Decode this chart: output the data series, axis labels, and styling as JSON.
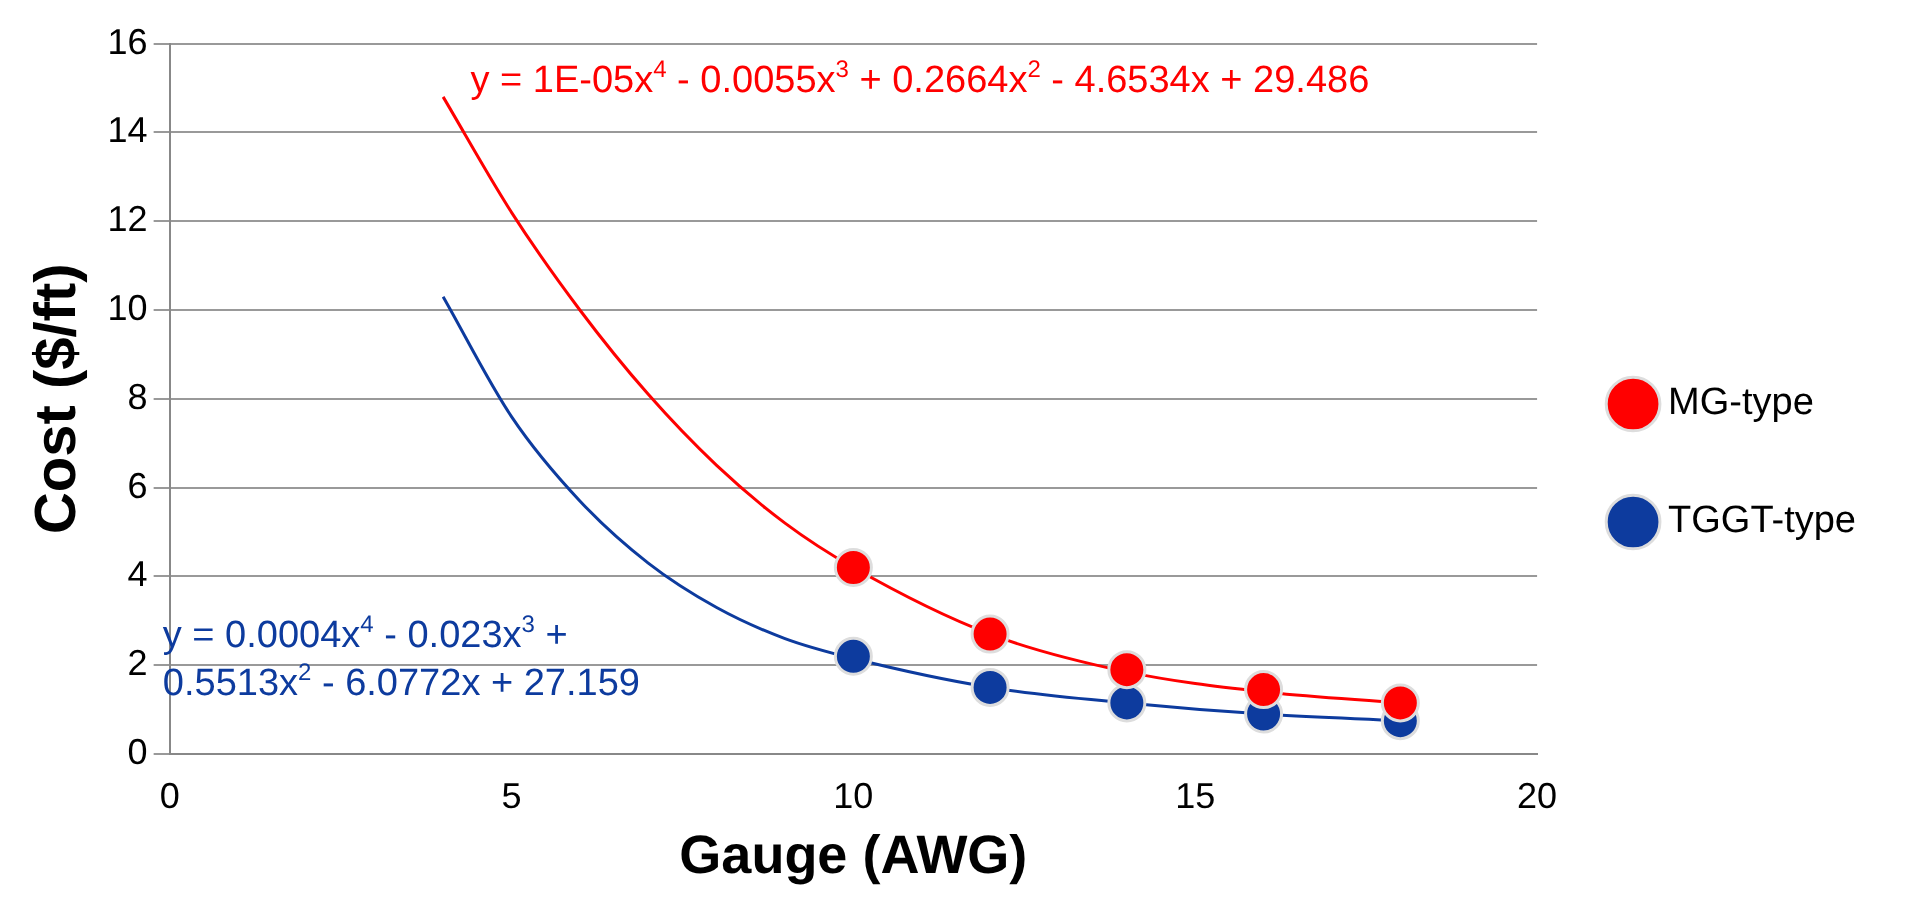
{
  "chart_data": {
    "type": "scatter",
    "xlabel": "Gauge (AWG)",
    "ylabel": "Cost ($/ft)",
    "xlim": [
      0,
      20
    ],
    "xticks": [
      0,
      5,
      10,
      15,
      20
    ],
    "ylim": [
      0,
      16
    ],
    "yticks": [
      0,
      2,
      4,
      6,
      8,
      10,
      12,
      14,
      16
    ],
    "grid": "y",
    "legend": "right",
    "series": [
      {
        "name": "MG-type",
        "marker": "circle",
        "color": "#ff0000",
        "x": [
          10,
          12,
          14,
          16,
          18
        ],
        "values": [
          4.2,
          2.7,
          1.9,
          1.45,
          1.15
        ]
      },
      {
        "name": "TGGT-type",
        "marker": "circle",
        "color": "#0d3b9e",
        "x": [
          10,
          12,
          14,
          16,
          18
        ],
        "values": [
          2.2,
          1.5,
          1.15,
          0.9,
          0.75
        ]
      },
      {
        "type": "line",
        "marker": "none",
        "color": "#ff0000",
        "x": [
          4,
          5,
          6,
          7,
          8,
          9,
          10,
          12,
          14,
          16,
          18
        ],
        "values": [
          14.8,
          12.2,
          10,
          8.1,
          6.5,
          5.2,
          4.2,
          2.7,
          1.85,
          1.4,
          1.15
        ]
      },
      {
        "type": "line",
        "marker": "none",
        "color": "#0d3b9e",
        "x": [
          4,
          5,
          6,
          7,
          8,
          9,
          10,
          12,
          14,
          16,
          18
        ],
        "values": [
          10.3,
          7.6,
          5.7,
          4.3,
          3.3,
          2.6,
          2.15,
          1.5,
          1.15,
          0.9,
          0.75
        ]
      }
    ],
    "annotations": [
      "y = 1E-05x$^{4}$ - 0.0055x$^{3}$ + 0.2664x$^{2}$ - 4.6534x + 29.486",
      "y = 0.0004x$^{4}$ - 0.023x$^{3}$ +\n0.5513x$^{2}$ - 6.0772x + 27.159"
    ]
  }
}
